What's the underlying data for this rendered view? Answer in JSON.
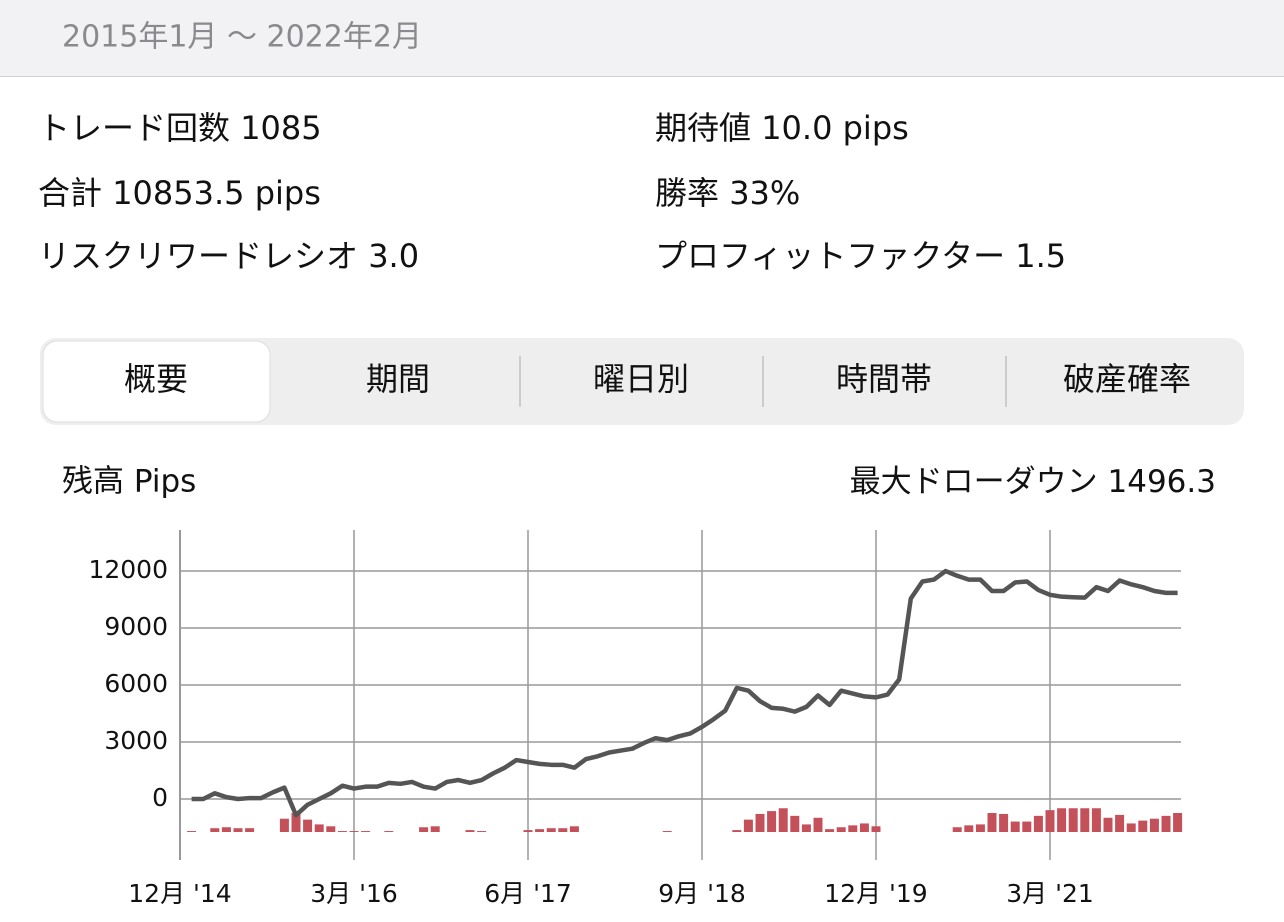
{
  "header": {
    "title": "2015年1月 〜 2022年2月"
  },
  "stats": [
    {
      "label": "トレード回数",
      "value": "1085"
    },
    {
      "label": "期待値",
      "value": "10.0 pips"
    },
    {
      "label": "合計",
      "value": "10853.5 pips"
    },
    {
      "label": "勝率",
      "value": "33%"
    },
    {
      "label": "リスクリワードレシオ",
      "value": "3.0"
    },
    {
      "label": "プロフィットファクター",
      "value": "1.5"
    }
  ],
  "tabs": [
    "概要",
    "期間",
    "曜日別",
    "時間帯",
    "破産確率"
  ],
  "selected_tab": 0,
  "chart_header": {
    "left": "残高 Pips",
    "right_label": "最大ドローダウン",
    "right_value": "1496.3"
  },
  "chart_data": {
    "type": "line",
    "categories": [
      "12月 '14",
      null,
      null,
      null,
      null,
      null,
      null,
      null,
      null,
      null,
      null,
      null,
      null,
      null,
      null,
      "3月 '16",
      null,
      null,
      null,
      null,
      null,
      null,
      null,
      null,
      null,
      null,
      null,
      null,
      null,
      null,
      "6月 '17",
      null,
      null,
      null,
      null,
      null,
      null,
      null,
      null,
      null,
      null,
      null,
      null,
      null,
      null,
      "9月 '18",
      null,
      null,
      null,
      null,
      null,
      null,
      null,
      null,
      null,
      null,
      null,
      null,
      null,
      null,
      "12月 '19",
      null,
      null,
      null,
      null,
      null,
      null,
      null,
      null,
      null,
      null,
      null,
      null,
      null,
      null,
      "3月 '21",
      null,
      null,
      null,
      null,
      null,
      null,
      null,
      null,
      null,
      null,
      null
    ],
    "series": [
      {
        "type": "line",
        "color": "#555555",
        "values": [
          null,
          0,
          0,
          300,
          100,
          0,
          50,
          50,
          350,
          600,
          -850,
          -300,
          0,
          300,
          700,
          550,
          650,
          650,
          850,
          800,
          900,
          650,
          550,
          900,
          1000,
          850,
          1000,
          1350,
          1650,
          2050,
          1950,
          1850,
          1800,
          1800,
          1650,
          2100,
          2250,
          2450,
          2550,
          2650,
          2950,
          3200,
          3100,
          3300,
          3450,
          3800,
          4200,
          4650,
          5850,
          5700,
          5150,
          4800,
          4750,
          4600,
          4850,
          5450,
          4950,
          5700,
          5550,
          5400,
          5350,
          5500,
          6300,
          10550,
          11450,
          11550,
          12000,
          11750,
          11550,
          11550,
          10950,
          10950,
          11400,
          11450,
          11000,
          10750,
          10650,
          10620,
          10600,
          11150,
          10950,
          11500,
          11300,
          11150,
          10950,
          10850,
          10850
        ]
      },
      {
        "type": "bar",
        "color": "#c4505a",
        "values": [
          null,
          50,
          null,
          200,
          250,
          200,
          200,
          null,
          null,
          700,
          1000,
          650,
          400,
          300,
          50,
          50,
          50,
          null,
          50,
          null,
          null,
          250,
          300,
          null,
          null,
          100,
          50,
          null,
          null,
          null,
          100,
          150,
          200,
          200,
          300,
          null,
          null,
          null,
          null,
          null,
          null,
          null,
          50,
          null,
          null,
          null,
          null,
          null,
          100,
          650,
          950,
          1100,
          1250,
          850,
          400,
          750,
          150,
          250,
          350,
          450,
          300,
          null,
          null,
          null,
          null,
          null,
          null,
          250,
          350,
          400,
          1000,
          950,
          550,
          550,
          850,
          1150,
          1250,
          1250,
          1250,
          1250,
          750,
          900,
          450,
          600,
          700,
          850,
          1000
        ]
      }
    ],
    "ylim": [
      -3210,
      14160
    ],
    "yticks": [
      0,
      3000,
      6000,
      9000,
      12000
    ],
    "grid": true
  }
}
